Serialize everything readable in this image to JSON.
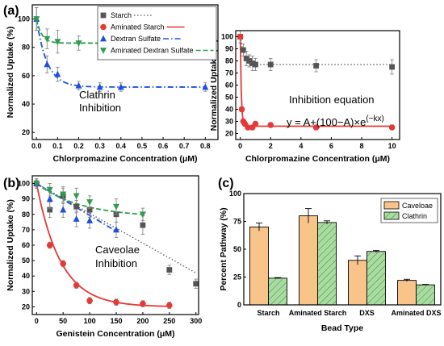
{
  "chart_data": [
    {
      "id": "a_left",
      "panel_label": "(a)",
      "type": "scatter",
      "xlabel": "Chlorpromazine Concentration (μM)",
      "ylabel": "Normalized Uptake (%)",
      "xlim": [
        -0.02,
        0.86
      ],
      "ylim": [
        15,
        110
      ],
      "xticks": [
        0.0,
        0.1,
        0.2,
        0.3,
        0.4,
        0.5,
        0.6,
        0.7,
        0.8
      ],
      "xtick_labels": [
        "0.0",
        "0.1",
        "0.2",
        "0.3",
        "0.4",
        "0.5",
        "0.6",
        "0.7",
        "0.8"
      ],
      "yticks": [
        20,
        40,
        60,
        80,
        100
      ],
      "annotation": "Clathrin\nInhibition",
      "legend": {
        "placement": "top-right",
        "entries": [
          "Starch",
          "Aminated Starch",
          "Dextran Sulfate",
          "Aminated Dextran Sulfate"
        ]
      },
      "series": [
        {
          "name": "Dextran Sulfate",
          "color": "#1f4fe0",
          "marker": "triangle-up",
          "line": "dash-dot",
          "points": [
            {
              "x": 0.0,
              "y": 100,
              "err": 8
            },
            {
              "x": 0.05,
              "y": 68,
              "err": 6
            },
            {
              "x": 0.1,
              "y": 61,
              "err": 5
            },
            {
              "x": 0.2,
              "y": 53,
              "err": 3
            },
            {
              "x": 0.3,
              "y": 52,
              "err": 3
            },
            {
              "x": 0.4,
              "y": 52,
              "err": 3
            },
            {
              "x": 0.8,
              "y": 52,
              "err": 3
            }
          ],
          "fit": {
            "A": 52,
            "k": 20
          }
        },
        {
          "name": "Aminated Dextran Sulfate",
          "color": "#2e9e4e",
          "marker": "triangle-down",
          "line": "dashed",
          "points": [
            {
              "x": 0.0,
              "y": 100,
              "err": 8
            },
            {
              "x": 0.05,
              "y": 86,
              "err": 7
            },
            {
              "x": 0.1,
              "y": 84,
              "err": 8
            },
            {
              "x": 0.2,
              "y": 83,
              "err": 5
            },
            {
              "x": 0.3,
              "y": 81,
              "err": 7
            }
          ],
          "fit": {
            "A": 83,
            "k": 40
          }
        }
      ]
    },
    {
      "id": "a_right",
      "type": "scatter",
      "xlabel": "Chlorpromazine Concentration (μM)",
      "ylabel": "Normalized Uptake (%)",
      "xlim": [
        -0.3,
        10.5
      ],
      "ylim": [
        15,
        105
      ],
      "xticks": [
        0,
        2,
        4,
        6,
        8,
        10
      ],
      "yticks": [
        20,
        30,
        40,
        50,
        60,
        70,
        80,
        90,
        100
      ],
      "annotation": "Inhibition equation",
      "equation": "y = A+(100−A)×e",
      "equation_exponent": "(−kx)",
      "series": [
        {
          "name": "Starch",
          "color": "#555555",
          "marker": "square",
          "line": "dotted",
          "points": [
            {
              "x": 0.0,
              "y": 100,
              "err": 5
            },
            {
              "x": 0.2,
              "y": 89,
              "err": 5
            },
            {
              "x": 0.4,
              "y": 82,
              "err": 6
            },
            {
              "x": 0.6,
              "y": 80,
              "err": 5
            },
            {
              "x": 0.8,
              "y": 78,
              "err": 6
            },
            {
              "x": 1.0,
              "y": 77,
              "err": 5
            },
            {
              "x": 2.0,
              "y": 77,
              "err": 5
            },
            {
              "x": 5.0,
              "y": 76,
              "err": 5
            },
            {
              "x": 10.0,
              "y": 75,
              "err": 6
            }
          ],
          "fit": {
            "A": 77,
            "k": 4
          }
        },
        {
          "name": "Aminated Starch",
          "color": "#e53935",
          "marker": "circle",
          "line": "solid",
          "points": [
            {
              "x": 0.0,
              "y": 100,
              "err": 2
            },
            {
              "x": 0.1,
              "y": 40,
              "err": 2
            },
            {
              "x": 0.2,
              "y": 30,
              "err": 2
            },
            {
              "x": 0.3,
              "y": 28,
              "err": 2
            },
            {
              "x": 0.5,
              "y": 25,
              "err": 2
            },
            {
              "x": 0.8,
              "y": 25,
              "err": 2
            },
            {
              "x": 1.0,
              "y": 28,
              "err": 2
            },
            {
              "x": 2.0,
              "y": 27,
              "err": 2
            },
            {
              "x": 5.0,
              "y": 25,
              "err": 2
            },
            {
              "x": 10.0,
              "y": 25,
              "err": 2
            }
          ],
          "fit": {
            "A": 26,
            "k": 15
          }
        }
      ]
    },
    {
      "id": "b",
      "panel_label": "(b)",
      "type": "scatter",
      "xlabel": "Genistein Concentration (μM)",
      "ylabel": "Normalized Uptake (%)",
      "xlim": [
        -8,
        305
      ],
      "ylim": [
        15,
        105
      ],
      "xticks": [
        0,
        50,
        100,
        150,
        200,
        250,
        300
      ],
      "yticks": [
        20,
        30,
        40,
        50,
        60,
        70,
        80,
        90,
        100
      ],
      "annotation": "Caveolae\nInhibition",
      "series": [
        {
          "name": "Starch",
          "color": "#555555",
          "marker": "square",
          "line": "dotted",
          "points": [
            {
              "x": 0,
              "y": 100,
              "err": 3
            },
            {
              "x": 25,
              "y": 83,
              "err": 5
            },
            {
              "x": 50,
              "y": 92,
              "err": 5
            },
            {
              "x": 75,
              "y": 85,
              "err": 4
            },
            {
              "x": 100,
              "y": 83,
              "err": 5
            },
            {
              "x": 150,
              "y": 80,
              "err": 5
            },
            {
              "x": 200,
              "y": 73,
              "err": 6
            },
            {
              "x": 250,
              "y": 44,
              "err": 3
            },
            {
              "x": 300,
              "y": 35,
              "err": 3
            }
          ],
          "fit_line": [
            [
              0,
              100
            ],
            [
              300,
              42
            ]
          ]
        },
        {
          "name": "Aminated Starch",
          "color": "#e53935",
          "marker": "circle",
          "line": "solid",
          "points": [
            {
              "x": 0,
              "y": 100,
              "err": 2
            },
            {
              "x": 25,
              "y": 60,
              "err": 2
            },
            {
              "x": 50,
              "y": 48,
              "err": 2
            },
            {
              "x": 75,
              "y": 34,
              "err": 2
            },
            {
              "x": 100,
              "y": 24,
              "err": 2
            },
            {
              "x": 150,
              "y": 23,
              "err": 2
            },
            {
              "x": 200,
              "y": 22,
              "err": 2
            },
            {
              "x": 250,
              "y": 21,
              "err": 2
            }
          ],
          "fit": {
            "A": 20,
            "k": 0.022
          }
        },
        {
          "name": "Dextran Sulfate",
          "color": "#1f4fe0",
          "marker": "triangle-up",
          "line": "dash-dot",
          "points": [
            {
              "x": 0,
              "y": 100,
              "err": 3
            },
            {
              "x": 25,
              "y": 90,
              "err": 6
            },
            {
              "x": 50,
              "y": 83,
              "err": 5
            },
            {
              "x": 75,
              "y": 77,
              "err": 5
            },
            {
              "x": 100,
              "y": 76,
              "err": 5
            },
            {
              "x": 150,
              "y": 70,
              "err": 5
            }
          ],
          "fit_line": [
            [
              0,
              100
            ],
            [
              150,
              69
            ]
          ]
        },
        {
          "name": "Aminated Dextran Sulfate",
          "color": "#2e9e4e",
          "marker": "triangle-down",
          "line": "dashed",
          "points": [
            {
              "x": 0,
              "y": 100,
              "err": 3
            },
            {
              "x": 25,
              "y": 96,
              "err": 4
            },
            {
              "x": 50,
              "y": 93,
              "err": 5
            },
            {
              "x": 75,
              "y": 92,
              "err": 5
            },
            {
              "x": 100,
              "y": 88,
              "err": 4
            },
            {
              "x": 150,
              "y": 85,
              "err": 5
            },
            {
              "x": 200,
              "y": 80,
              "err": 4
            }
          ],
          "fit": {
            "A": 78,
            "k": 0.012
          }
        }
      ]
    },
    {
      "id": "c",
      "panel_label": "(c)",
      "type": "bar",
      "xlabel": "Bead Type",
      "ylabel": "Percent Pathway (%)",
      "ylim": [
        0,
        100
      ],
      "yticks": [
        0,
        25,
        50,
        75,
        100
      ],
      "categories": [
        "Starch",
        "Aminated Starch",
        "DXS",
        "Aminated DXS"
      ],
      "legend": {
        "placement": "top-right"
      },
      "series": [
        {
          "name": "Caveloae",
          "color": "#f9c48a",
          "hatch": false,
          "values": [
            70,
            80,
            40,
            22
          ],
          "errors": [
            3.5,
            6.5,
            4,
            1
          ]
        },
        {
          "name": "Clathrin",
          "color": "#a8dca0",
          "hatch": true,
          "values": [
            24,
            74,
            48,
            18
          ],
          "errors": [
            0.5,
            1.5,
            0.8,
            0.4
          ]
        }
      ]
    }
  ]
}
